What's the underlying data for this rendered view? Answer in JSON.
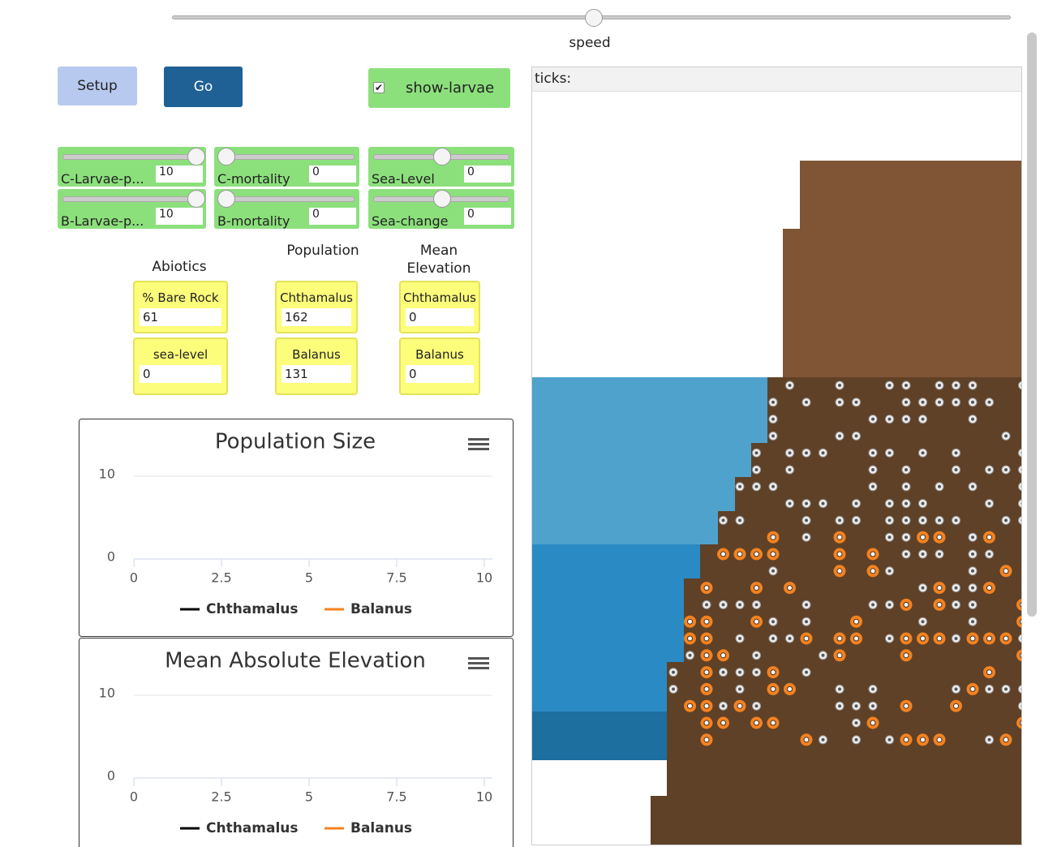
{
  "speed": {
    "label": "speed"
  },
  "buttons": {
    "setup": "Setup",
    "go": "Go"
  },
  "switch": {
    "label": "show-larvae",
    "on": true
  },
  "sliders": [
    {
      "label": "C-Larvae-p...",
      "value": 10
    },
    {
      "label": "C-mortality",
      "value": 0
    },
    {
      "label": "Sea-Level",
      "value": 0
    },
    {
      "label": "B-Larvae-p...",
      "value": 10
    },
    {
      "label": "B-mortality",
      "value": 0
    },
    {
      "label": "Sea-change",
      "value": 0
    }
  ],
  "headings": {
    "abiotics": "Abiotics",
    "population": "Population",
    "elevation": "Mean Elevation"
  },
  "monitors": [
    {
      "label": "% Bare Rock",
      "value": 61
    },
    {
      "label": "sea-level",
      "value": 0
    },
    {
      "label": "Chthamalus",
      "value": 162
    },
    {
      "label": "Balanus",
      "value": 131
    },
    {
      "label": "Chthamalus",
      "value": 0
    },
    {
      "label": "Balanus",
      "value": 0
    }
  ],
  "plots": [
    {
      "title": "Population Size",
      "xlim": [
        0,
        10
      ],
      "ylim": [
        0,
        10
      ],
      "xticks": [
        0,
        2.5,
        5,
        7.5,
        10
      ],
      "yticks": [
        0,
        10
      ],
      "series": [
        {
          "name": "Chthamalus",
          "color": "#000000"
        },
        {
          "name": "Balanus",
          "color": "#f5821f"
        }
      ]
    },
    {
      "title": "Mean Absolute Elevation",
      "xlim": [
        0,
        10
      ],
      "ylim": [
        0,
        10
      ],
      "xticks": [
        0,
        2.5,
        5,
        7.5,
        10
      ],
      "yticks": [
        0,
        10
      ],
      "series": [
        {
          "name": "Chthamalus",
          "color": "#000000"
        },
        {
          "name": "Balanus",
          "color": "#f5821f"
        }
      ]
    }
  ],
  "view": {
    "label": "ticks:"
  }
}
